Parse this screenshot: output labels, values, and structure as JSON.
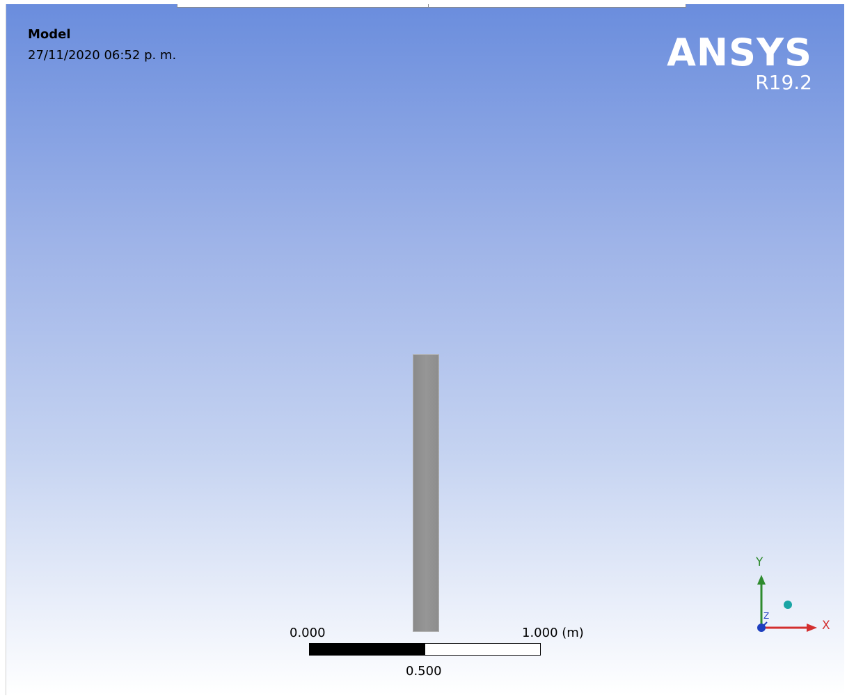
{
  "viewport": {
    "title": "Model",
    "date": "27/11/2020 06:52 p. m."
  },
  "brand": {
    "name": "ANSYS",
    "version": "R19.2"
  },
  "scale": {
    "start_label": "0.000",
    "mid_label": "0.500",
    "end_label": "1.000 (m)"
  },
  "triad": {
    "x_label": "X",
    "y_label": "Y",
    "z_label": "Z",
    "x_color": "#d32f2f",
    "y_color": "#2e8b2e",
    "z_color": "#1e3fbf",
    "iso_color": "#1aa5a5"
  },
  "colors": {
    "background_top": "#6a8ddd",
    "background_bottom": "#ffffff",
    "model_body": "#919191"
  }
}
